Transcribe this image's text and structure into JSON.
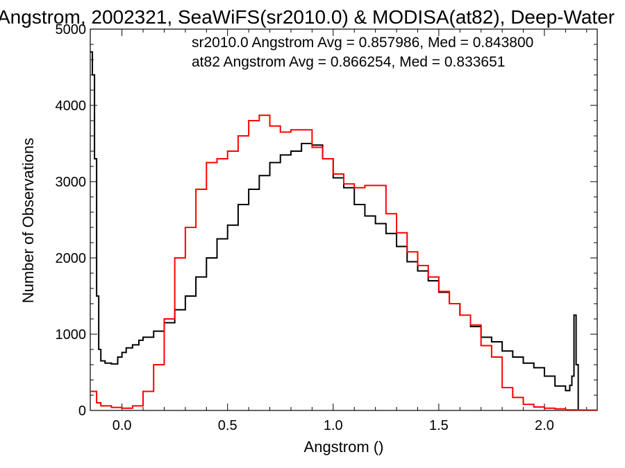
{
  "chart_data": {
    "type": "line",
    "title": "Angstrom, 2002321, SeaWiFS(sr2010.0) & MODISA(at82), Deep-Water",
    "xlabel": "Angstrom ()",
    "ylabel": "Number of Observations",
    "xlim": [
      -0.15,
      2.25
    ],
    "ylim": [
      0,
      5000
    ],
    "xticks": [
      0.0,
      0.5,
      1.0,
      1.5,
      2.0
    ],
    "xtick_labels": [
      "0.0",
      "0.5",
      "1.0",
      "1.5",
      "2.0"
    ],
    "yticks": [
      0,
      1000,
      2000,
      3000,
      4000,
      5000
    ],
    "ytick_labels": [
      "0",
      "1000",
      "2000",
      "3000",
      "4000",
      "5000"
    ],
    "grid": false,
    "step": true,
    "annotations": [
      {
        "text": "sr2010.0 Angstrom Avg = 0.857986, Med = 0.843800",
        "color": "#000000"
      },
      {
        "text": "at82 Angstrom Avg = 0.866254, Med = 0.833651",
        "color": "#ff0000"
      }
    ],
    "series": [
      {
        "color": "#000000",
        "x": [
          -0.15,
          -0.14,
          -0.13,
          -0.12,
          -0.11,
          -0.1,
          -0.08,
          -0.05,
          -0.02,
          0.0,
          0.02,
          0.05,
          0.08,
          0.1,
          0.15,
          0.2,
          0.25,
          0.3,
          0.35,
          0.4,
          0.45,
          0.5,
          0.55,
          0.6,
          0.65,
          0.7,
          0.75,
          0.8,
          0.85,
          0.9,
          0.95,
          1.0,
          1.05,
          1.1,
          1.15,
          1.2,
          1.25,
          1.3,
          1.35,
          1.4,
          1.45,
          1.5,
          1.55,
          1.6,
          1.65,
          1.7,
          1.75,
          1.8,
          1.85,
          1.9,
          1.95,
          2.0,
          2.05,
          2.1,
          2.12,
          2.13,
          2.14,
          2.15,
          2.16
        ],
        "y": [
          4700,
          4400,
          3300,
          1500,
          800,
          650,
          620,
          610,
          700,
          760,
          820,
          860,
          920,
          960,
          1040,
          1150,
          1320,
          1500,
          1750,
          2000,
          2250,
          2430,
          2700,
          2900,
          3080,
          3250,
          3350,
          3400,
          3500,
          3480,
          3300,
          3050,
          2920,
          2700,
          2550,
          2450,
          2320,
          2150,
          1950,
          1830,
          1700,
          1550,
          1400,
          1250,
          1100,
          960,
          900,
          780,
          700,
          620,
          560,
          450,
          320,
          260,
          330,
          450,
          1250,
          600,
          0
        ]
      },
      {
        "color": "#ff0000",
        "x": [
          -0.15,
          -0.12,
          -0.1,
          -0.05,
          0.0,
          0.05,
          0.1,
          0.15,
          0.2,
          0.25,
          0.3,
          0.35,
          0.4,
          0.45,
          0.5,
          0.55,
          0.6,
          0.65,
          0.7,
          0.75,
          0.8,
          0.85,
          0.9,
          0.95,
          1.0,
          1.05,
          1.1,
          1.15,
          1.2,
          1.25,
          1.3,
          1.35,
          1.4,
          1.45,
          1.5,
          1.55,
          1.6,
          1.65,
          1.7,
          1.75,
          1.8,
          1.85,
          1.9,
          1.95,
          2.0,
          2.05,
          2.1,
          2.15,
          2.2,
          2.25
        ],
        "y": [
          250,
          100,
          60,
          40,
          30,
          60,
          250,
          600,
          1200,
          2000,
          2400,
          2900,
          3250,
          3300,
          3400,
          3600,
          3800,
          3870,
          3730,
          3650,
          3680,
          3680,
          3450,
          3300,
          3100,
          2970,
          2920,
          2950,
          2950,
          2580,
          2330,
          2080,
          1900,
          1750,
          1560,
          1400,
          1250,
          1120,
          850,
          700,
          300,
          170,
          80,
          45,
          30,
          20,
          8,
          6,
          4,
          2
        ]
      }
    ]
  }
}
